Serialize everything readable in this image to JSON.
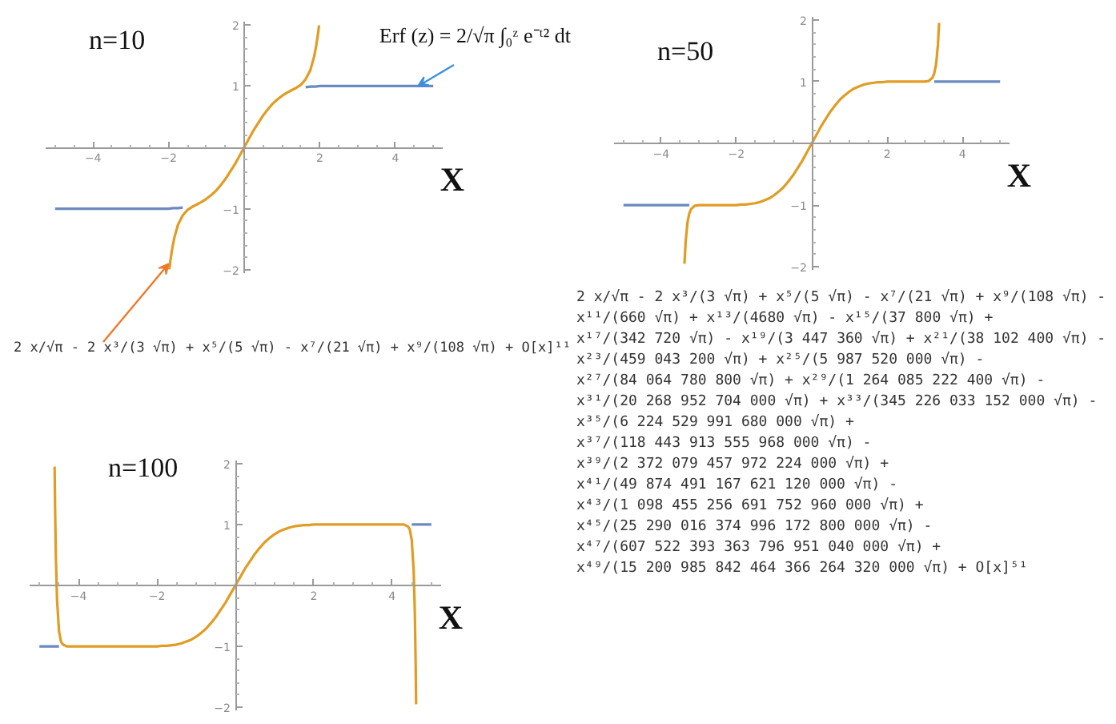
{
  "chart_data": [
    {
      "type": "line",
      "title": "n=10",
      "xlabel": "X",
      "xlim": [
        -5.25,
        5.25
      ],
      "ylim": [
        -2.05,
        2.05
      ],
      "xticks": [
        {
          "value": -5,
          "label": null
        },
        {
          "value": -4.5,
          "label": null
        },
        -4,
        {
          "value": -3.5,
          "label": null
        },
        {
          "value": -3,
          "label": null
        },
        {
          "value": -2.5,
          "label": null
        },
        -2,
        {
          "value": -1.5,
          "label": null
        },
        {
          "value": -1,
          "label": null
        },
        {
          "value": -0.5,
          "label": null
        },
        {
          "value": 0.5,
          "label": null
        },
        {
          "value": 1,
          "label": null
        },
        {
          "value": 1.5,
          "label": null
        },
        2,
        {
          "value": 2.5,
          "label": null
        },
        {
          "value": 3,
          "label": null
        },
        {
          "value": 3.5,
          "label": null
        },
        4,
        {
          "value": 4.5,
          "label": null
        },
        {
          "value": 5,
          "label": null
        }
      ],
      "yticks": [
        -2,
        {
          "value": -1.8,
          "label": null
        },
        {
          "value": -1.6,
          "label": null
        },
        {
          "value": -1.4,
          "label": null
        },
        {
          "value": -1.2,
          "label": null
        },
        -1,
        {
          "value": -0.8,
          "label": null
        },
        {
          "value": -0.6,
          "label": null
        },
        {
          "value": -0.4,
          "label": null
        },
        {
          "value": -0.2,
          "label": null
        },
        {
          "value": 0.2,
          "label": null
        },
        {
          "value": 0.4,
          "label": null
        },
        {
          "value": 0.6,
          "label": null
        },
        {
          "value": 0.8,
          "label": null
        },
        1,
        {
          "value": 1.2,
          "label": null
        },
        {
          "value": 1.4,
          "label": null
        },
        {
          "value": 1.6,
          "label": null
        },
        {
          "value": 1.8,
          "label": null
        },
        2
      ],
      "series": [
        {
          "color": "#6a8ac0",
          "x": [
            -5,
            -4,
            -3,
            -2.5,
            -2,
            -1.875,
            -1.75,
            -1.625,
            0,
            1.625,
            1.75,
            1.875,
            2,
            2.5,
            3,
            4,
            5
          ],
          "values": [
            -1,
            -1,
            -1,
            -1,
            -1,
            -0.99,
            -0.99,
            -0.98,
            null,
            0.98,
            0.99,
            0.99,
            1,
            1,
            1,
            1,
            1
          ]
        },
        {
          "color": "#e19c24",
          "x": [
            -1.98,
            -1.95,
            -1.9,
            -1.85,
            -1.75,
            -1.625,
            -1.5,
            -1.375,
            -1.25,
            -1.125,
            -1,
            -0.875,
            -0.75,
            -0.625,
            -0.5,
            -0.375,
            -0.25,
            -0.125,
            0,
            0.125,
            0.25,
            0.375,
            0.5,
            0.625,
            0.75,
            0.875,
            1,
            1.125,
            1.25,
            1.375,
            1.5,
            1.625,
            1.75,
            1.85,
            1.9,
            1.95,
            1.98
          ],
          "values": [
            -1.99,
            -1.84,
            -1.64,
            -1.48,
            -1.26,
            -1.11,
            -1.02,
            -0.97,
            -0.93,
            -0.89,
            -0.84,
            -0.78,
            -0.71,
            -0.62,
            -0.52,
            -0.4,
            -0.28,
            -0.14,
            0,
            0.14,
            0.28,
            0.4,
            0.52,
            0.62,
            0.71,
            0.78,
            0.84,
            0.89,
            0.93,
            0.97,
            1.02,
            1.11,
            1.26,
            1.48,
            1.64,
            1.84,
            1.99
          ]
        }
      ],
      "annotations": [
        {
          "text": "Erf (z) = 2/√π ∫₀ᶻ e⁻ᵗ² dt",
          "x": 4.6,
          "y": 1
        },
        {
          "text": "2 x/√π - 2 x³/(3 √π) + x⁵/(5 √π) - x⁷/(21 √π) + x⁹/(108 √π) + O[x]¹¹",
          "x": -2.0,
          "y": -1.9
        }
      ]
    },
    {
      "type": "line",
      "title": "n=50",
      "xlabel": "X",
      "xlim": [
        -5.25,
        5.25
      ],
      "ylim": [
        -2.05,
        2.05
      ],
      "xticks": [
        {
          "value": -5,
          "label": null
        },
        {
          "value": -4.5,
          "label": null
        },
        -4,
        {
          "value": -3.5,
          "label": null
        },
        {
          "value": -3,
          "label": null
        },
        {
          "value": -2.5,
          "label": null
        },
        -2,
        {
          "value": -1.5,
          "label": null
        },
        {
          "value": -1,
          "label": null
        },
        {
          "value": -0.5,
          "label": null
        },
        {
          "value": 0.5,
          "label": null
        },
        {
          "value": 1,
          "label": null
        },
        {
          "value": 1.5,
          "label": null
        },
        2,
        {
          "value": 2.5,
          "label": null
        },
        {
          "value": 3,
          "label": null
        },
        {
          "value": 3.5,
          "label": null
        },
        4,
        {
          "value": 4.5,
          "label": null
        },
        {
          "value": 5,
          "label": null
        }
      ],
      "yticks": [
        -2,
        {
          "value": -1.8,
          "label": null
        },
        {
          "value": -1.6,
          "label": null
        },
        {
          "value": -1.4,
          "label": null
        },
        {
          "value": -1.2,
          "label": null
        },
        -1,
        {
          "value": -0.8,
          "label": null
        },
        {
          "value": -0.6,
          "label": null
        },
        {
          "value": -0.4,
          "label": null
        },
        {
          "value": -0.2,
          "label": null
        },
        {
          "value": 0.2,
          "label": null
        },
        {
          "value": 0.4,
          "label": null
        },
        {
          "value": 0.6,
          "label": null
        },
        {
          "value": 0.8,
          "label": null
        },
        1,
        {
          "value": 1.2,
          "label": null
        },
        {
          "value": 1.4,
          "label": null
        },
        {
          "value": 1.6,
          "label": null
        },
        {
          "value": 1.8,
          "label": null
        },
        2
      ],
      "series": [
        {
          "color": "#6a8ac0",
          "x": [
            -5,
            -4,
            -3.25,
            0,
            3.25,
            4,
            5
          ],
          "values": [
            -1,
            -1,
            -1,
            null,
            1,
            1,
            1
          ]
        },
        {
          "color": "#e19c24",
          "x": [
            -3.38,
            -3.35,
            -3.3,
            -3.25,
            -3.2,
            -3.1,
            -3,
            -2.5,
            -2,
            -1.875,
            -1.75,
            -1.625,
            -1.5,
            -1.375,
            -1.25,
            -1.125,
            -1,
            -0.875,
            -0.75,
            -0.625,
            -0.5,
            -0.375,
            -0.25,
            -0.125,
            0,
            0.125,
            0.25,
            0.375,
            0.5,
            0.625,
            0.75,
            0.875,
            1,
            1.125,
            1.25,
            1.375,
            1.5,
            1.625,
            1.75,
            1.875,
            2,
            2.5,
            3,
            3.1,
            3.2,
            3.25,
            3.3,
            3.35,
            3.38
          ],
          "values": [
            -1.95,
            -1.6,
            -1.28,
            -1.13,
            -1.06,
            -1.01,
            -1,
            -1,
            -1,
            -0.99,
            -0.99,
            -0.98,
            -0.97,
            -0.95,
            -0.92,
            -0.89,
            -0.84,
            -0.78,
            -0.71,
            -0.62,
            -0.52,
            -0.4,
            -0.28,
            -0.14,
            0,
            0.14,
            0.28,
            0.4,
            0.52,
            0.62,
            0.71,
            0.78,
            0.84,
            0.89,
            0.92,
            0.95,
            0.97,
            0.98,
            0.99,
            0.99,
            1,
            1,
            1,
            1.01,
            1.06,
            1.13,
            1.28,
            1.6,
            1.95
          ]
        }
      ],
      "annotations": [
        "2 x/√π - 2 x³/(3 √π) + x⁵/(5 √π) - x⁷/(21 √π) + x⁹/(108 √π) - x¹¹/(660 √π) + x¹³/(4680 √π) - x¹⁵/(37 800 √π) + x¹⁷/(342 720 √π) - x¹⁹/(3 447 360 √π) + x²¹/(38 102 400 √π) - x²³/(459 043 200 √π) + x²⁵/(5 987 520 000 √π) - x²⁷/(84 064 780 800 √π) + x²⁹/(1 264 085 222 400 √π) - x³¹/(20 268 952 704 000 √π) + x³³/(345 226 033 152 000 √π) - x³⁵/(6 224 529 991 680 000 √π) + x³⁷/(118 443 913 555 968 000 √π) - x³⁹/(2 372 079 457 972 224 000 √π) + x⁴¹/(49 874 491 167 621 120 000 √π) - x⁴³/(1 098 455 256 691 752 960 000 √π) + x⁴⁵/(25 290 016 374 996 172 800 000 √π) - x⁴⁷/(607 522 393 363 796 951 040 000 √π) + x⁴⁹/(15 200 985 842 464 366 264 320 000 √π) + O[x]⁵¹"
      ]
    },
    {
      "type": "line",
      "title": "n=100",
      "xlabel": "X",
      "xlim": [
        -5.25,
        5.25
      ],
      "ylim": [
        -2.05,
        2.05
      ],
      "xticks": [
        {
          "value": -5,
          "label": null
        },
        {
          "value": -4.5,
          "label": null
        },
        -4,
        {
          "value": -3.5,
          "label": null
        },
        {
          "value": -3,
          "label": null
        },
        {
          "value": -2.5,
          "label": null
        },
        -2,
        {
          "value": -1.5,
          "label": null
        },
        {
          "value": -1,
          "label": null
        },
        {
          "value": -0.5,
          "label": null
        },
        {
          "value": 0.5,
          "label": null
        },
        {
          "value": 1,
          "label": null
        },
        {
          "value": 1.5,
          "label": null
        },
        2,
        {
          "value": 2.5,
          "label": null
        },
        {
          "value": 3,
          "label": null
        },
        {
          "value": 3.5,
          "label": null
        },
        4,
        {
          "value": 4.5,
          "label": null
        },
        {
          "value": 5,
          "label": null
        }
      ],
      "yticks": [
        -2,
        {
          "value": -1.8,
          "label": null
        },
        {
          "value": -1.6,
          "label": null
        },
        {
          "value": -1.4,
          "label": null
        },
        {
          "value": -1.2,
          "label": null
        },
        -1,
        {
          "value": -0.8,
          "label": null
        },
        {
          "value": -0.6,
          "label": null
        },
        {
          "value": -0.4,
          "label": null
        },
        {
          "value": -0.2,
          "label": null
        },
        {
          "value": 0.2,
          "label": null
        },
        {
          "value": 0.4,
          "label": null
        },
        {
          "value": 0.6,
          "label": null
        },
        {
          "value": 0.8,
          "label": null
        },
        1,
        {
          "value": 1.2,
          "label": null
        },
        {
          "value": 1.4,
          "label": null
        },
        {
          "value": 1.6,
          "label": null
        },
        {
          "value": 1.8,
          "label": null
        },
        2
      ],
      "series": [
        {
          "color": "#6a8ac0",
          "x": [
            -5,
            -4.5,
            0,
            4.5,
            5
          ],
          "values": [
            -1,
            -1,
            null,
            1,
            1
          ]
        },
        {
          "color": "#e19c24",
          "x": [
            -4.612,
            -4.61,
            -4.6,
            -4.58,
            -4.55,
            -4.5,
            -4.45,
            -4.4,
            -4.3,
            -4,
            -3,
            -2.5,
            -2,
            -1.875,
            -1.75,
            -1.625,
            -1.5,
            -1.375,
            -1.25,
            -1.125,
            -1,
            -0.875,
            -0.75,
            -0.625,
            -0.5,
            -0.375,
            -0.25,
            -0.125,
            0,
            0.125,
            0.25,
            0.375,
            0.5,
            0.625,
            0.75,
            0.875,
            1,
            1.125,
            1.25,
            1.375,
            1.5,
            1.625,
            1.75,
            1.875,
            2,
            2.5,
            3,
            4,
            4.3,
            4.4,
            4.45,
            4.5,
            4.55,
            4.58,
            4.6,
            4.61,
            4.612
          ],
          "values": [
            1.95,
            1.82,
            1.27,
            0.46,
            -0.24,
            -0.75,
            -0.92,
            -0.97,
            -1,
            -1,
            -1,
            -1,
            -1,
            -0.99,
            -0.99,
            -0.98,
            -0.97,
            -0.95,
            -0.92,
            -0.89,
            -0.84,
            -0.78,
            -0.71,
            -0.62,
            -0.52,
            -0.4,
            -0.28,
            -0.14,
            0,
            0.14,
            0.28,
            0.4,
            0.52,
            0.62,
            0.71,
            0.78,
            0.84,
            0.89,
            0.92,
            0.95,
            0.97,
            0.98,
            0.99,
            0.99,
            1,
            1,
            1,
            1,
            1,
            0.97,
            0.92,
            0.75,
            0.24,
            -0.46,
            -1.27,
            -1.82,
            -1.95
          ]
        }
      ]
    }
  ]
}
